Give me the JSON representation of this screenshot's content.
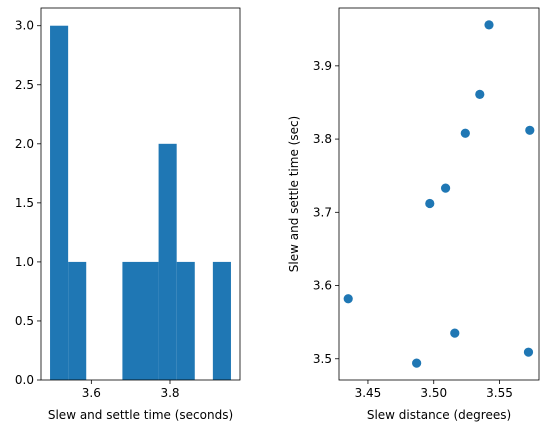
{
  "chart_data": [
    {
      "type": "bar",
      "subtype": "histogram",
      "xlabel": "Slew and settle time (seconds)",
      "ylabel": "",
      "color": "#1f77b4",
      "bins": [
        {
          "x0": 3.495,
          "x1": 3.541,
          "count": 3
        },
        {
          "x0": 3.541,
          "x1": 3.587,
          "count": 1
        },
        {
          "x0": 3.587,
          "x1": 3.633,
          "count": 0
        },
        {
          "x0": 3.633,
          "x1": 3.679,
          "count": 0
        },
        {
          "x0": 3.679,
          "x1": 3.725,
          "count": 1
        },
        {
          "x0": 3.725,
          "x1": 3.771,
          "count": 1
        },
        {
          "x0": 3.771,
          "x1": 3.817,
          "count": 2
        },
        {
          "x0": 3.817,
          "x1": 3.863,
          "count": 1
        },
        {
          "x0": 3.863,
          "x1": 3.909,
          "count": 0
        },
        {
          "x0": 3.909,
          "x1": 3.955,
          "count": 1
        }
      ],
      "xlim": [
        3.472,
        3.978
      ],
      "ylim": [
        0,
        3.15
      ],
      "xticks": [
        3.6,
        3.8
      ],
      "xtick_labels": [
        "3.6",
        "3.8"
      ],
      "yticks": [
        0.0,
        0.5,
        1.0,
        1.5,
        2.0,
        2.5,
        3.0
      ],
      "ytick_labels": [
        "0.0",
        "0.5",
        "1.0",
        "1.5",
        "2.0",
        "2.5",
        "3.0"
      ]
    },
    {
      "type": "scatter",
      "xlabel": "Slew distance (degrees)",
      "ylabel": "Slew and settle time (sec)",
      "color": "#1f77b4",
      "points": [
        {
          "x": 3.435,
          "y": 3.582
        },
        {
          "x": 3.487,
          "y": 3.494
        },
        {
          "x": 3.497,
          "y": 3.712
        },
        {
          "x": 3.509,
          "y": 3.733
        },
        {
          "x": 3.516,
          "y": 3.535
        },
        {
          "x": 3.524,
          "y": 3.808
        },
        {
          "x": 3.535,
          "y": 3.861
        },
        {
          "x": 3.542,
          "y": 3.956
        },
        {
          "x": 3.572,
          "y": 3.509
        },
        {
          "x": 3.573,
          "y": 3.812
        }
      ],
      "xlim": [
        3.428,
        3.58
      ],
      "ylim": [
        3.471,
        3.979
      ],
      "xticks": [
        3.45,
        3.5,
        3.55
      ],
      "xtick_labels": [
        "3.45",
        "3.50",
        "3.55"
      ],
      "yticks": [
        3.5,
        3.6,
        3.7,
        3.8,
        3.9
      ],
      "ytick_labels": [
        "3.5",
        "3.6",
        "3.7",
        "3.8",
        "3.9"
      ]
    }
  ]
}
